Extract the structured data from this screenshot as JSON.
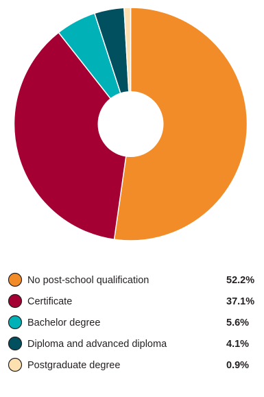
{
  "chart_data": {
    "type": "pie",
    "title": "",
    "categories": [
      "No post-school qualification",
      "Certificate",
      "Bachelor degree",
      "Diploma and advanced diploma",
      "Postgraduate degree"
    ],
    "values": [
      52.2,
      37.1,
      5.6,
      4.1,
      0.9
    ],
    "value_labels": [
      "52.2%",
      "37.1%",
      "5.6%",
      "4.1%",
      "0.9%"
    ],
    "unit": "%",
    "colors": [
      "#f28c28",
      "#a50034",
      "#00b2b7",
      "#00505f",
      "#fde0b0"
    ],
    "donut": true,
    "start_angle": "12 o'clock",
    "direction": "clockwise",
    "legend_position": "bottom"
  }
}
